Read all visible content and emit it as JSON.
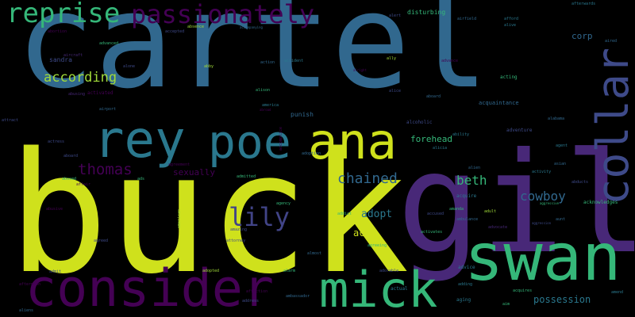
{
  "words": [
    {
      "text": "cartel",
      "color": "#31688e"
    },
    {
      "text": "buck",
      "color": "#cfe11c"
    },
    {
      "text": "gil",
      "color": "#482878"
    },
    {
      "text": "swan",
      "color": "#35b779"
    },
    {
      "text": "consider",
      "color": "#440154"
    },
    {
      "text": "mick",
      "color": "#35b779"
    },
    {
      "text": "ana",
      "color": "#cfe11c"
    },
    {
      "text": "rey",
      "color": "#2a788e"
    },
    {
      "text": "poe",
      "color": "#2a788e"
    },
    {
      "text": "collar",
      "color": "#3e4a89"
    },
    {
      "text": "reprise",
      "color": "#35b779"
    },
    {
      "text": "passionately",
      "color": "#440154"
    },
    {
      "text": "lily",
      "color": "#414487"
    },
    {
      "text": "according",
      "color": "#a0da39"
    },
    {
      "text": "thomas",
      "color": "#440154"
    },
    {
      "text": "chained",
      "color": "#31688e"
    },
    {
      "text": "beth",
      "color": "#35b779"
    },
    {
      "text": "cowboy",
      "color": "#31688e"
    },
    {
      "text": "adopt",
      "color": "#2a788e"
    },
    {
      "text": "acid",
      "color": "#cfe11c"
    },
    {
      "text": "possession",
      "color": "#2a788e"
    },
    {
      "text": "forehead",
      "color": "#35b779"
    },
    {
      "text": "sexually",
      "color": "#440154"
    },
    {
      "text": "corp",
      "color": "#31688e"
    },
    {
      "text": "sandra",
      "color": "#3e4a89"
    },
    {
      "text": "disturbing",
      "color": "#35b779"
    },
    {
      "text": "acquaintance",
      "color": "#31688e"
    },
    {
      "text": "punish",
      "color": "#31688e"
    },
    {
      "text": "activated",
      "color": "#440154"
    },
    {
      "text": "acknowledges",
      "color": "#35b779"
    },
    {
      "text": "alcoholic",
      "color": "#3e4a89"
    },
    {
      "text": "adventure",
      "color": "#3e4a89"
    },
    {
      "text": "acting",
      "color": "#35b779"
    },
    {
      "text": "aging",
      "color": "#2a788e"
    },
    {
      "text": "advice",
      "color": "#2a788e"
    },
    {
      "text": "acquire",
      "color": "#2a788e"
    },
    {
      "text": "abortion",
      "color": "#440154"
    },
    {
      "text": "action",
      "color": "#31688e"
    },
    {
      "text": "america",
      "color": "#2a788e"
    },
    {
      "text": "addict",
      "color": "#35b779"
    },
    {
      "text": "ability",
      "color": "#2a788e"
    },
    {
      "text": "actual",
      "color": "#2a788e"
    },
    {
      "text": "address",
      "color": "#3e4a89"
    },
    {
      "text": "adoption",
      "color": "#31688e"
    },
    {
      "text": "afterwards",
      "color": "#2a788e"
    },
    {
      "text": "adult",
      "color": "#a0da39"
    },
    {
      "text": "aired",
      "color": "#31688e"
    },
    {
      "text": "agency",
      "color": "#35b779"
    },
    {
      "text": "aim",
      "color": "#35b779"
    },
    {
      "text": "abby",
      "color": "#a0da39"
    },
    {
      "text": "alison",
      "color": "#35b779"
    },
    {
      "text": "absence",
      "color": "#a0da39"
    },
    {
      "text": "accepted",
      "color": "#3e4a89"
    },
    {
      "text": "advance",
      "color": "#440154"
    },
    {
      "text": "activity",
      "color": "#2a788e"
    },
    {
      "text": "accused",
      "color": "#3e4a89"
    },
    {
      "text": "activates",
      "color": "#35b779"
    },
    {
      "text": "abusive",
      "color": "#440154"
    },
    {
      "text": "affair",
      "color": "#440154"
    },
    {
      "text": "admit",
      "color": "#3e4a89"
    },
    {
      "text": "ally",
      "color": "#a0da39"
    },
    {
      "text": "aunt",
      "color": "#31688e"
    },
    {
      "text": "alien",
      "color": "#31688e"
    },
    {
      "text": "almost",
      "color": "#31688e"
    },
    {
      "text": "aboard",
      "color": "#31688e"
    },
    {
      "text": "accompanying",
      "color": "#31688e"
    },
    {
      "text": "alabama",
      "color": "#31688e"
    },
    {
      "text": "acquires",
      "color": "#35b779"
    },
    {
      "text": "actress",
      "color": "#3e4a89"
    },
    {
      "text": "alone",
      "color": "#3e4a89"
    },
    {
      "text": "amend",
      "color": "#2a788e"
    },
    {
      "text": "advocate",
      "color": "#482878"
    },
    {
      "text": "agent",
      "color": "#2a788e"
    },
    {
      "text": "ads",
      "color": "#35b779"
    },
    {
      "text": "abducts",
      "color": "#3e4a89"
    },
    {
      "text": "alive",
      "color": "#2a788e"
    },
    {
      "text": "aggressive",
      "color": "#35b779"
    },
    {
      "text": "agreement",
      "color": "#440154"
    },
    {
      "text": "agreed",
      "color": "#3e4a89"
    },
    {
      "text": "ambulance",
      "color": "#31688e"
    },
    {
      "text": "afford",
      "color": "#2a788e"
    },
    {
      "text": "airport",
      "color": "#31688e"
    },
    {
      "text": "airfield",
      "color": "#31688e"
    },
    {
      "text": "advanced",
      "color": "#35b779"
    },
    {
      "text": "affection",
      "color": "#440154"
    },
    {
      "text": "admitted",
      "color": "#35b779"
    },
    {
      "text": "abused",
      "color": "#35b779"
    },
    {
      "text": "attract",
      "color": "#3e4a89"
    },
    {
      "text": "aircraft",
      "color": "#482878"
    },
    {
      "text": "abroad",
      "color": "#440154"
    },
    {
      "text": "abusing",
      "color": "#482878"
    },
    {
      "text": "accident",
      "color": "#2a788e"
    },
    {
      "text": "agreeing",
      "color": "#35b779"
    },
    {
      "text": "aboard",
      "color": "#3e4a89"
    },
    {
      "text": "ambassador",
      "color": "#31688e"
    },
    {
      "text": "amanda",
      "color": "#35b779"
    },
    {
      "text": "adopted",
      "color": "#a0da39"
    },
    {
      "text": "attorney",
      "color": "#3e4a89"
    },
    {
      "text": "alicia",
      "color": "#2a788e"
    },
    {
      "text": "adorable",
      "color": "#3e4a89"
    },
    {
      "text": "accomplice",
      "color": "#440154"
    },
    {
      "text": "afternoon",
      "color": "#440154"
    },
    {
      "text": "alarm",
      "color": "#35b779"
    },
    {
      "text": "amazing",
      "color": "#3e4a89"
    },
    {
      "text": "american",
      "color": "#a0da39"
    },
    {
      "text": "adding",
      "color": "#2a788e"
    },
    {
      "text": "alright",
      "color": "#440154"
    },
    {
      "text": "aggression",
      "color": "#3e4a89"
    },
    {
      "text": "asian",
      "color": "#31688e"
    },
    {
      "text": "alert",
      "color": "#3e4a89"
    },
    {
      "text": "alice",
      "color": "#3e4a89"
    },
    {
      "text": "aliens",
      "color": "#31688e"
    }
  ]
}
